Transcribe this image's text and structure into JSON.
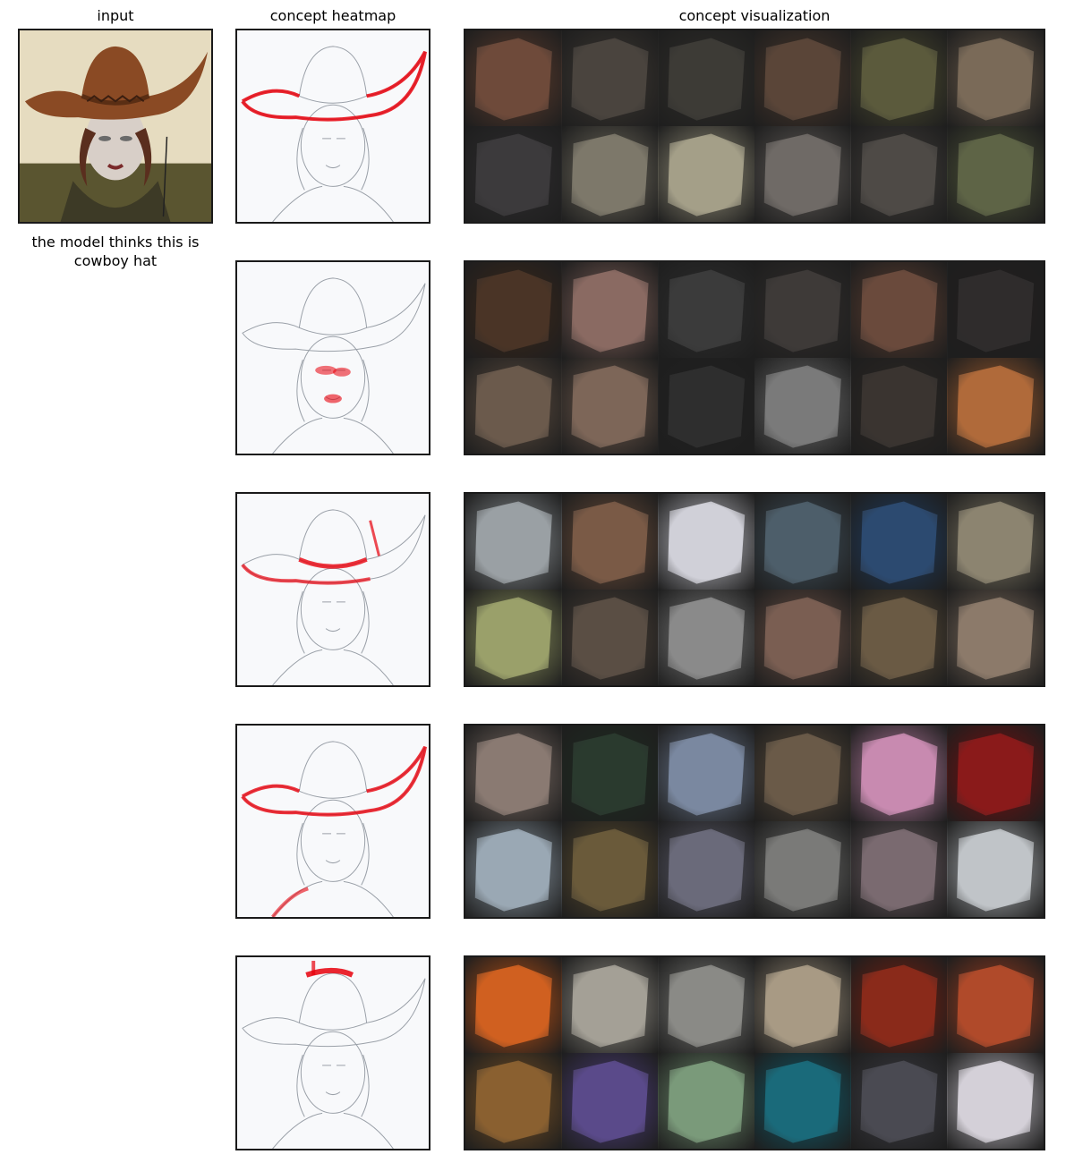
{
  "titles": {
    "input": "input",
    "heatmap": "concept heatmap",
    "visualization": "concept visualization"
  },
  "caption": "the model thinks this is cowboy hat",
  "icons": {
    "input_image": "mannequin-cowboy-hat-photo",
    "heatmap_image": "edge-sketch-heatmap"
  },
  "colors": {
    "heat_accent": "#e8000b",
    "sketch_line": "#9aa0a8",
    "border": "#1a1a1a"
  },
  "concepts": [
    {
      "highlight": "hat-brim",
      "tiles": [
        "#6e4a3a",
        "#4a443e",
        "#3d3b36",
        "#5a4538",
        "#5b5a3c",
        "#7a6a58",
        "#3c3a3c",
        "#7d786a",
        "#a49f88",
        "#6f6a66",
        "#4e4a46",
        "#5e6446"
      ]
    },
    {
      "highlight": "face",
      "tiles": [
        "#4a3426",
        "#8a6a62",
        "#3b3b3b",
        "#3e3a38",
        "#6a4a3c",
        "#2f2c2c",
        "#6b5a4c",
        "#7d6658",
        "#2e2e2e",
        "#7a7a7a",
        "#3a3430",
        "#b06a3a"
      ]
    },
    {
      "highlight": "hat-band",
      "tiles": [
        "#9aa0a4",
        "#7a5a46",
        "#d0d0d8",
        "#4d5e6a",
        "#2c4a70",
        "#8c8470",
        "#9aa06a",
        "#5a4e44",
        "#8a8a8a",
        "#7a5e52",
        "#6a5a44",
        "#8c7a6a"
      ]
    },
    {
      "highlight": "hat-brim-and-shoulder",
      "tiles": [
        "#8a7a72",
        "#2a3a2e",
        "#7a88a0",
        "#6a5a48",
        "#c88ab0",
        "#8a1a1a",
        "#9aa8b4",
        "#6a5a3a",
        "#6a6a7a",
        "#7a7a78",
        "#7a6a70",
        "#c0c4c8"
      ]
    },
    {
      "highlight": "hat-crown",
      "tiles": [
        "#d06020",
        "#a4a096",
        "#8a8a86",
        "#a89a84",
        "#8a2a1a",
        "#b04a2a",
        "#8a6030",
        "#5a4a8a",
        "#7a9a7a",
        "#1a6a7a",
        "#4a4a52",
        "#d4d0d8"
      ]
    }
  ]
}
